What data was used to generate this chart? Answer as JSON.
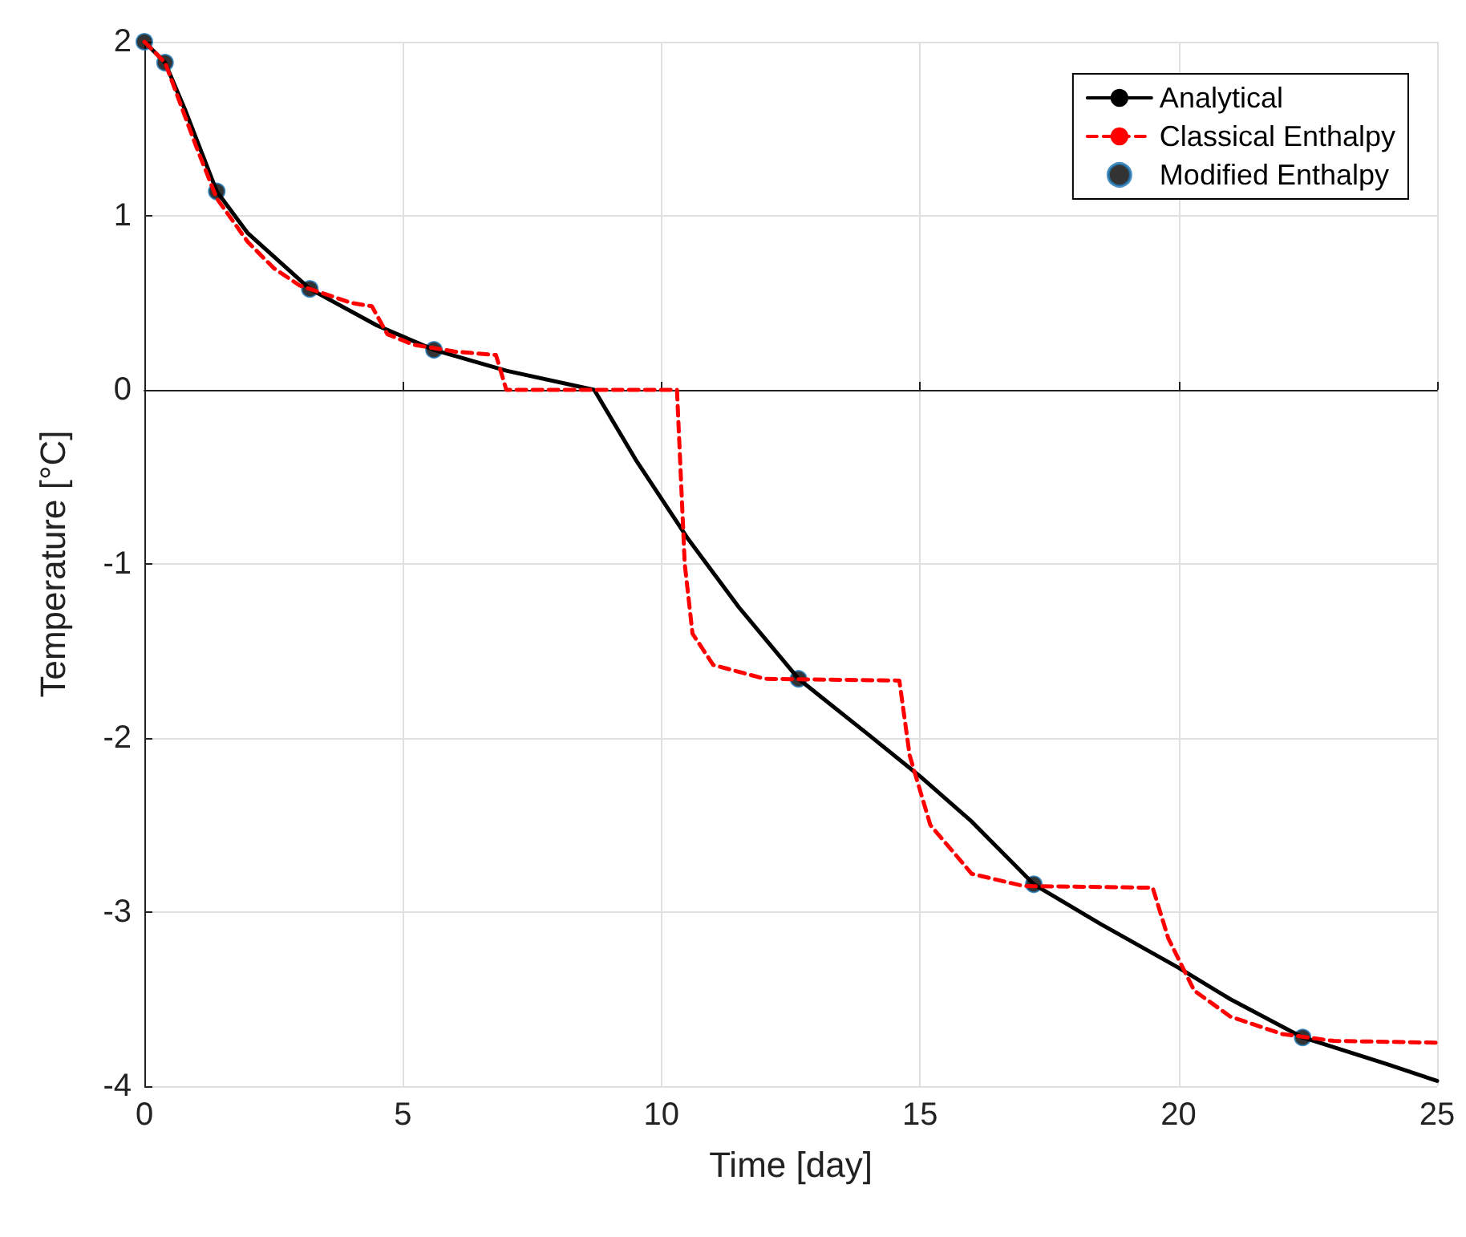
{
  "chart_data": {
    "type": "line",
    "xlabel": "Time [day]",
    "ylabel": "Temperature [°C]",
    "xlim": [
      0,
      25
    ],
    "xticks": [
      0,
      5,
      10,
      15,
      20,
      25
    ],
    "ylim": [
      -4,
      2
    ],
    "yticks": [
      -4,
      -3,
      -2,
      -1,
      0,
      1,
      2
    ],
    "grid": true,
    "legend": "top right",
    "series": [
      {
        "name": "Analytical",
        "color": "#000000",
        "line_style": "solid",
        "marker": "none",
        "x": [
          0,
          0.4,
          0.8,
          1.4,
          2,
          3.2,
          4.5,
          5.6,
          7,
          8.7,
          9.5,
          10.5,
          11.5,
          12.65,
          14,
          15,
          16,
          17.2,
          18.5,
          20,
          21,
          22.4,
          24,
          25
        ],
        "values": [
          2,
          1.88,
          1.6,
          1.14,
          0.9,
          0.58,
          0.37,
          0.23,
          0.11,
          0,
          -0.4,
          -0.85,
          -1.25,
          -1.66,
          -1.98,
          -2.22,
          -2.48,
          -2.84,
          -3.07,
          -3.32,
          -3.5,
          -3.72,
          -3.87,
          -3.97
        ]
      },
      {
        "name": "Classical Enthalpy",
        "color": "#ff0000",
        "line_style": "dashed",
        "marker": "none",
        "x": [
          0,
          0.4,
          1,
          1.4,
          2,
          2.5,
          3,
          3.5,
          4,
          4.4,
          4.7,
          5.2,
          6,
          6.8,
          7,
          10.3,
          10.45,
          10.6,
          11,
          12,
          14.6,
          14.8,
          15.2,
          16,
          17,
          19.5,
          19.8,
          20.3,
          21,
          22,
          23,
          25
        ],
        "values": [
          2,
          1.88,
          1.4,
          1.1,
          0.85,
          0.7,
          0.6,
          0.55,
          0.5,
          0.48,
          0.32,
          0.26,
          0.22,
          0.2,
          0,
          0,
          -1.0,
          -1.4,
          -1.58,
          -1.66,
          -1.67,
          -2.1,
          -2.5,
          -2.78,
          -2.85,
          -2.86,
          -3.15,
          -3.45,
          -3.6,
          -3.7,
          -3.74,
          -3.75
        ]
      },
      {
        "name": "Modified Enthalpy",
        "type": "scatter",
        "color": "#000000",
        "marker": "circle",
        "x": [
          0,
          0.4,
          1.4,
          3.2,
          5.6,
          12.65,
          17.2,
          22.4
        ],
        "values": [
          2,
          1.88,
          1.14,
          0.58,
          0.23,
          -1.66,
          -2.84,
          -3.72
        ]
      }
    ]
  }
}
